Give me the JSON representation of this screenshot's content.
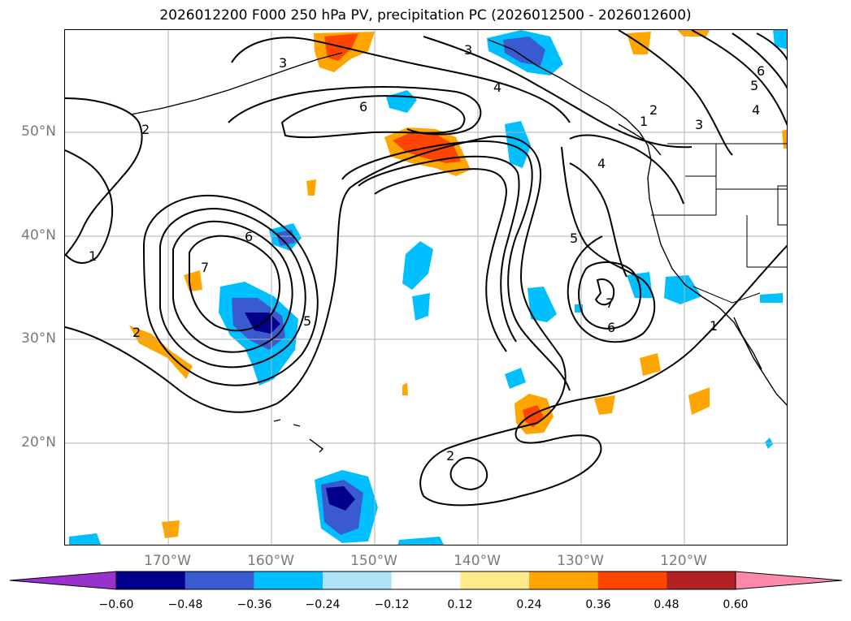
{
  "title": "2026012200 F000 250 hPa PV, precipitation PC (2026012500 - 2026012600)",
  "map": {
    "latitude_labels": [
      "50°N",
      "40°N",
      "30°N",
      "20°N"
    ],
    "longitude_labels": [
      "170°W",
      "160°W",
      "150°W",
      "140°W",
      "130°W",
      "120°W"
    ],
    "pv_contour_labels": [
      "1",
      "2",
      "3",
      "4",
      "5",
      "6",
      "7"
    ]
  },
  "colorbar": {
    "ticks": [
      "−0.60",
      "−0.48",
      "−0.36",
      "−0.24",
      "−0.12",
      "0.12",
      "0.24",
      "0.36",
      "0.48",
      "0.60"
    ],
    "colors": [
      "#9932cc",
      "#00008b",
      "#3a5bd0",
      "#00bfff",
      "#aee3f7",
      "#ffffff",
      "#ffe98a",
      "#ffa500",
      "#ff4500",
      "#b22222",
      "#ff88aa"
    ]
  }
}
